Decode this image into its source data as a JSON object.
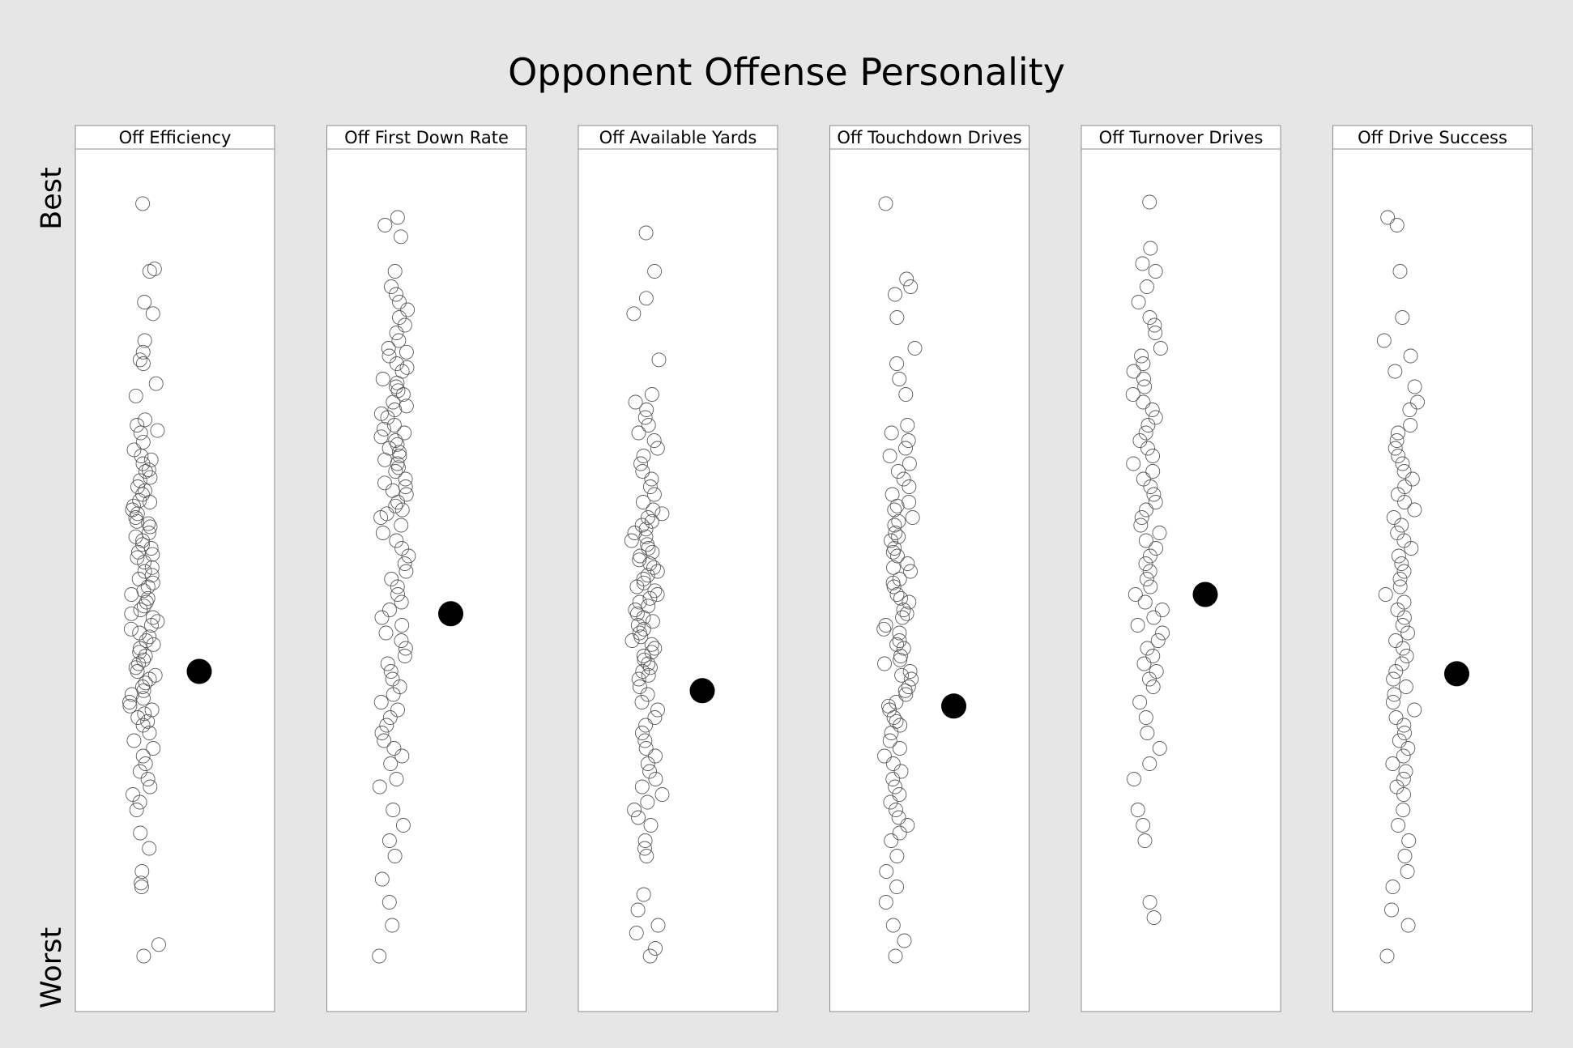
{
  "chart_data": {
    "type": "scatter",
    "title": "Opponent Offense Personality",
    "ylabel_top": "Best",
    "ylabel_bottom": "Worst",
    "y_scale": "rank (best at top, worst at bottom)",
    "marker_style": {
      "others": "open circle",
      "highlight": "filled circle"
    },
    "colors": {
      "background": "#e6e6e6",
      "panel": "#ffffff",
      "marker": "#000000"
    },
    "panels": [
      {
        "header": "Off Efficiency",
        "highlight": 0.62,
        "others": [
          0.012,
          0.097,
          0.1,
          0.14,
          0.155,
          0.19,
          0.205,
          0.215,
          0.22,
          0.246,
          0.262,
          0.293,
          0.3,
          0.307,
          0.31,
          0.322,
          0.332,
          0.34,
          0.345,
          0.35,
          0.358,
          0.36,
          0.368,
          0.372,
          0.38,
          0.385,
          0.39,
          0.398,
          0.4,
          0.405,
          0.41,
          0.415,
          0.42,
          0.425,
          0.428,
          0.432,
          0.44,
          0.445,
          0.45,
          0.455,
          0.46,
          0.465,
          0.468,
          0.472,
          0.478,
          0.485,
          0.49,
          0.495,
          0.5,
          0.505,
          0.51,
          0.515,
          0.52,
          0.525,
          0.53,
          0.535,
          0.54,
          0.545,
          0.55,
          0.555,
          0.56,
          0.565,
          0.57,
          0.575,
          0.58,
          0.585,
          0.59,
          0.595,
          0.6,
          0.605,
          0.61,
          0.615,
          0.62,
          0.625,
          0.63,
          0.635,
          0.64,
          0.645,
          0.65,
          0.655,
          0.66,
          0.665,
          0.67,
          0.675,
          0.68,
          0.685,
          0.69,
          0.7,
          0.71,
          0.72,
          0.73,
          0.74,
          0.75,
          0.76,
          0.77,
          0.78,
          0.79,
          0.8,
          0.83,
          0.85,
          0.88,
          0.895,
          0.9,
          0.975,
          0.99
        ]
      },
      {
        "header": "Off First Down Rate",
        "highlight": 0.545,
        "others": [
          0.03,
          0.04,
          0.055,
          0.1,
          0.12,
          0.13,
          0.14,
          0.15,
          0.16,
          0.17,
          0.18,
          0.19,
          0.2,
          0.205,
          0.21,
          0.22,
          0.225,
          0.23,
          0.24,
          0.245,
          0.25,
          0.255,
          0.26,
          0.27,
          0.275,
          0.28,
          0.285,
          0.29,
          0.3,
          0.305,
          0.31,
          0.315,
          0.32,
          0.325,
          0.33,
          0.335,
          0.34,
          0.345,
          0.35,
          0.355,
          0.36,
          0.37,
          0.375,
          0.38,
          0.385,
          0.39,
          0.4,
          0.405,
          0.41,
          0.415,
          0.42,
          0.43,
          0.44,
          0.45,
          0.46,
          0.47,
          0.48,
          0.49,
          0.5,
          0.51,
          0.52,
          0.53,
          0.54,
          0.55,
          0.56,
          0.57,
          0.58,
          0.59,
          0.6,
          0.61,
          0.62,
          0.63,
          0.64,
          0.65,
          0.66,
          0.67,
          0.68,
          0.69,
          0.7,
          0.71,
          0.72,
          0.73,
          0.74,
          0.76,
          0.77,
          0.8,
          0.82,
          0.84,
          0.86,
          0.89,
          0.92,
          0.95,
          0.99
        ]
      },
      {
        "header": "Off Available Yards",
        "highlight": 0.645,
        "others": [
          0.05,
          0.1,
          0.135,
          0.155,
          0.215,
          0.26,
          0.27,
          0.28,
          0.29,
          0.3,
          0.31,
          0.32,
          0.33,
          0.34,
          0.35,
          0.36,
          0.37,
          0.38,
          0.39,
          0.4,
          0.41,
          0.415,
          0.42,
          0.425,
          0.43,
          0.435,
          0.44,
          0.445,
          0.45,
          0.455,
          0.46,
          0.465,
          0.47,
          0.475,
          0.48,
          0.485,
          0.49,
          0.495,
          0.5,
          0.505,
          0.51,
          0.515,
          0.52,
          0.525,
          0.53,
          0.535,
          0.54,
          0.545,
          0.55,
          0.555,
          0.56,
          0.565,
          0.57,
          0.575,
          0.58,
          0.585,
          0.59,
          0.595,
          0.6,
          0.605,
          0.61,
          0.615,
          0.62,
          0.625,
          0.63,
          0.64,
          0.65,
          0.66,
          0.67,
          0.68,
          0.69,
          0.7,
          0.71,
          0.72,
          0.73,
          0.74,
          0.75,
          0.76,
          0.77,
          0.78,
          0.79,
          0.8,
          0.81,
          0.82,
          0.84,
          0.85,
          0.86,
          0.91,
          0.93,
          0.95,
          0.96,
          0.98,
          0.99
        ]
      },
      {
        "header": "Off Touchdown Drives",
        "highlight": 0.665,
        "others": [
          0.012,
          0.11,
          0.12,
          0.13,
          0.16,
          0.2,
          0.22,
          0.24,
          0.26,
          0.3,
          0.31,
          0.32,
          0.33,
          0.34,
          0.35,
          0.36,
          0.37,
          0.38,
          0.39,
          0.4,
          0.405,
          0.41,
          0.42,
          0.425,
          0.43,
          0.44,
          0.445,
          0.45,
          0.46,
          0.465,
          0.47,
          0.48,
          0.485,
          0.49,
          0.5,
          0.505,
          0.51,
          0.52,
          0.525,
          0.53,
          0.54,
          0.545,
          0.55,
          0.56,
          0.565,
          0.57,
          0.58,
          0.585,
          0.59,
          0.6,
          0.605,
          0.61,
          0.62,
          0.625,
          0.63,
          0.64,
          0.645,
          0.65,
          0.66,
          0.665,
          0.67,
          0.68,
          0.685,
          0.69,
          0.7,
          0.71,
          0.72,
          0.73,
          0.74,
          0.75,
          0.76,
          0.77,
          0.78,
          0.79,
          0.8,
          0.81,
          0.82,
          0.83,
          0.84,
          0.86,
          0.88,
          0.9,
          0.92,
          0.95,
          0.97,
          0.99
        ]
      },
      {
        "header": "Off Turnover Drives",
        "highlight": 0.52,
        "others": [
          0.01,
          0.07,
          0.09,
          0.1,
          0.12,
          0.14,
          0.16,
          0.17,
          0.18,
          0.2,
          0.21,
          0.22,
          0.23,
          0.24,
          0.25,
          0.26,
          0.27,
          0.28,
          0.29,
          0.3,
          0.31,
          0.32,
          0.33,
          0.34,
          0.35,
          0.36,
          0.37,
          0.38,
          0.39,
          0.4,
          0.41,
          0.42,
          0.43,
          0.44,
          0.45,
          0.46,
          0.47,
          0.48,
          0.49,
          0.5,
          0.51,
          0.52,
          0.53,
          0.54,
          0.55,
          0.56,
          0.57,
          0.58,
          0.59,
          0.6,
          0.61,
          0.62,
          0.63,
          0.64,
          0.66,
          0.68,
          0.7,
          0.72,
          0.74,
          0.76,
          0.8,
          0.82,
          0.84,
          0.92,
          0.94
        ]
      },
      {
        "header": "Off Drive Success",
        "highlight": 0.623,
        "others": [
          0.03,
          0.04,
          0.1,
          0.16,
          0.19,
          0.21,
          0.23,
          0.25,
          0.27,
          0.28,
          0.3,
          0.31,
          0.32,
          0.33,
          0.34,
          0.35,
          0.36,
          0.37,
          0.38,
          0.39,
          0.4,
          0.41,
          0.42,
          0.43,
          0.44,
          0.45,
          0.46,
          0.47,
          0.48,
          0.49,
          0.5,
          0.51,
          0.52,
          0.53,
          0.54,
          0.55,
          0.56,
          0.57,
          0.58,
          0.59,
          0.6,
          0.61,
          0.62,
          0.63,
          0.64,
          0.65,
          0.66,
          0.67,
          0.68,
          0.69,
          0.7,
          0.71,
          0.72,
          0.73,
          0.74,
          0.75,
          0.76,
          0.77,
          0.78,
          0.8,
          0.82,
          0.84,
          0.86,
          0.88,
          0.9,
          0.93,
          0.95,
          0.99
        ]
      }
    ]
  }
}
